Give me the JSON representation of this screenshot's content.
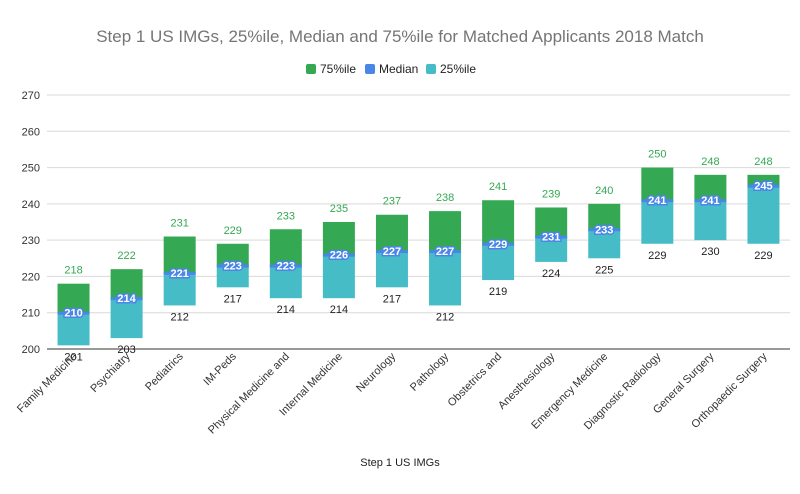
{
  "chart_data": {
    "type": "bar",
    "subtype": "stacked-range",
    "title": "Step 1 US IMGs, 25%ile, Median and 75%ile for Matched Applicants 2018 Match",
    "xlabel": "Step 1 US IMGs",
    "ylabel": "",
    "ylim": [
      200,
      270
    ],
    "yticks": [
      200,
      210,
      220,
      230,
      240,
      250,
      260,
      270
    ],
    "grid": true,
    "legend": {
      "placement": "top-center",
      "entries": [
        "75%ile",
        "Median",
        "25%ile"
      ]
    },
    "colors": {
      "p75": "#34a853",
      "median": "#4a86e8",
      "p25": "#46bdc6"
    },
    "categories": [
      "Family Medicine",
      "Psychiatry",
      "Pediatrics",
      "IM-Peds",
      "Physical Medicine and",
      "Internal Medicine",
      "Neurology",
      "Pathology",
      "Obstetrics and",
      "Anesthesiology",
      "Emergency Medicine",
      "Diagnostic Radiology",
      "General Surgery",
      "Orthopaedic Surgery"
    ],
    "series": [
      {
        "name": "25%ile",
        "values": [
          201,
          203,
          212,
          217,
          214,
          214,
          217,
          212,
          219,
          224,
          225,
          229,
          230,
          229
        ]
      },
      {
        "name": "Median",
        "values": [
          210,
          214,
          221,
          223,
          223,
          226,
          227,
          227,
          229,
          231,
          233,
          241,
          241,
          245
        ]
      },
      {
        "name": "75%ile",
        "values": [
          218,
          222,
          231,
          229,
          233,
          235,
          237,
          238,
          241,
          239,
          240,
          250,
          248,
          248
        ]
      }
    ]
  }
}
